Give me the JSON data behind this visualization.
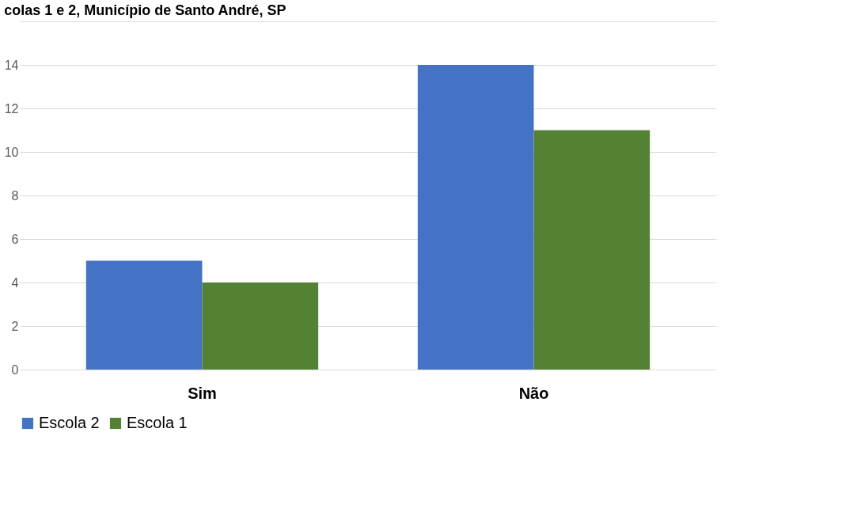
{
  "chart_data": {
    "type": "bar",
    "title": "colas 1 e 2, Município de Santo André, SP",
    "categories": [
      "Sim",
      "Não"
    ],
    "series": [
      {
        "name": "Escola 2",
        "color": "#4472c4",
        "values": [
          5,
          14
        ]
      },
      {
        "name": "Escola 1",
        "color": "#548235",
        "values": [
          4,
          11
        ]
      }
    ],
    "ylim": [
      0,
      16
    ],
    "yticks": [
      0,
      2,
      4,
      6,
      8,
      10,
      12,
      14,
      {
        "value": 16,
        "label": null
      }
    ],
    "grid": "y",
    "legend": "bottom"
  }
}
